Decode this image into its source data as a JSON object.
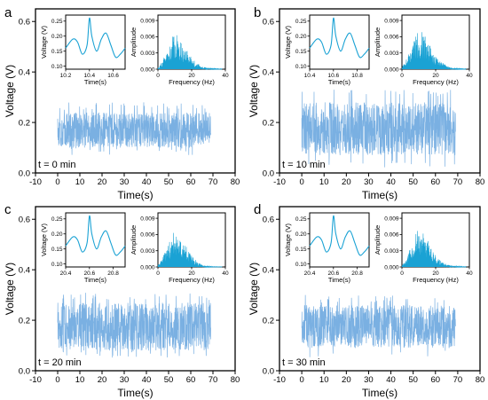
{
  "colors": {
    "signal": "#7ab0e2",
    "inset_line": "#1aa2d4",
    "axis": "#000000",
    "background": "#ffffff"
  },
  "chart_data": [
    {
      "panel": "a",
      "type": "line",
      "annotation": "t = 0 min",
      "xlabel": "Time(s)",
      "ylabel": "Voltage (V)",
      "xlim": [
        -10,
        80
      ],
      "ylim": [
        0,
        0.65
      ],
      "xticks": [
        -10,
        0,
        10,
        20,
        30,
        40,
        50,
        60,
        70,
        80
      ],
      "yticks": [
        0.0,
        0.2,
        0.4,
        0.6
      ],
      "signal": {
        "x_start": 0,
        "x_end": 69,
        "mean": 0.17,
        "band_low": 0.1,
        "band_high": 0.24,
        "max": 0.28,
        "min": 0.07
      },
      "insets": [
        {
          "type": "line",
          "xlabel": "Time(s)",
          "ylabel": "Voltage (V)",
          "xlim": [
            10.2,
            10.7
          ],
          "ylim": [
            0.09,
            0.27
          ],
          "xticks": [
            10.2,
            10.4,
            10.6
          ],
          "yticks": [
            0.1,
            0.15,
            0.2,
            0.25
          ],
          "x": [
            10.2,
            10.26,
            10.3,
            10.34,
            10.38,
            10.4,
            10.42,
            10.46,
            10.5,
            10.54,
            10.58,
            10.62,
            10.66,
            10.7
          ],
          "y": [
            0.16,
            0.19,
            0.18,
            0.14,
            0.17,
            0.26,
            0.2,
            0.15,
            0.19,
            0.21,
            0.17,
            0.13,
            0.14,
            0.16
          ]
        },
        {
          "type": "area",
          "xlabel": "Frequency (Hz)",
          "ylabel": "Amplitude",
          "xlim": [
            0,
            40
          ],
          "ylim": [
            0,
            0.01
          ],
          "xticks": [
            0,
            20,
            40
          ],
          "yticks": [
            0.0,
            0.003,
            0.006,
            0.009
          ],
          "x": [
            0,
            2,
            4,
            6,
            8,
            10,
            12,
            14,
            16,
            18,
            20,
            22,
            24,
            26,
            28,
            30,
            34,
            38
          ],
          "y": [
            0.0003,
            0.001,
            0.002,
            0.003,
            0.0045,
            0.0055,
            0.005,
            0.0042,
            0.0035,
            0.0028,
            0.0018,
            0.0012,
            0.0008,
            0.0005,
            0.0003,
            0.0002,
            0.0001,
            5e-05
          ]
        }
      ]
    },
    {
      "panel": "b",
      "type": "line",
      "annotation": "t = 10 min",
      "xlabel": "Time(s)",
      "ylabel": "Voltage (V)",
      "xlim": [
        -10,
        80
      ],
      "ylim": [
        0,
        0.65
      ],
      "xticks": [
        -10,
        0,
        10,
        20,
        30,
        40,
        50,
        60,
        70,
        80
      ],
      "yticks": [
        0.0,
        0.2,
        0.4,
        0.6
      ],
      "signal": {
        "x_start": 0,
        "x_end": 69,
        "mean": 0.17,
        "band_low": 0.07,
        "band_high": 0.28,
        "max": 0.33,
        "min": 0.02
      },
      "insets": [
        {
          "type": "line",
          "xlabel": "Time(s)",
          "ylabel": "Voltage (V)",
          "xlim": [
            10.4,
            10.9
          ],
          "ylim": [
            0.09,
            0.27
          ],
          "xticks": [
            10.4,
            10.6,
            10.8
          ],
          "yticks": [
            0.1,
            0.15,
            0.2,
            0.25
          ],
          "x": [
            10.4,
            10.46,
            10.5,
            10.54,
            10.58,
            10.6,
            10.62,
            10.66,
            10.7,
            10.74,
            10.78,
            10.82,
            10.86,
            10.9
          ],
          "y": [
            0.16,
            0.19,
            0.18,
            0.14,
            0.17,
            0.26,
            0.2,
            0.15,
            0.19,
            0.21,
            0.17,
            0.13,
            0.14,
            0.16
          ]
        },
        {
          "type": "area",
          "xlabel": "Frequency (Hz)",
          "ylabel": "Amplitude",
          "xlim": [
            0,
            40
          ],
          "ylim": [
            0,
            0.01
          ],
          "xticks": [
            0,
            20,
            40
          ],
          "yticks": [
            0.0,
            0.003,
            0.006,
            0.009
          ],
          "x": [
            0,
            2,
            4,
            6,
            8,
            10,
            12,
            14,
            16,
            18,
            20,
            22,
            24,
            26,
            28,
            30,
            34,
            38
          ],
          "y": [
            0.0003,
            0.0012,
            0.0025,
            0.0035,
            0.005,
            0.006,
            0.0055,
            0.0048,
            0.004,
            0.003,
            0.002,
            0.0014,
            0.001,
            0.0006,
            0.0004,
            0.0002,
            0.0001,
            5e-05
          ]
        }
      ]
    },
    {
      "panel": "c",
      "type": "line",
      "annotation": "t = 20 min",
      "xlabel": "Time(s)",
      "ylabel": "Voltage (V)",
      "xlim": [
        -10,
        80
      ],
      "ylim": [
        0,
        0.65
      ],
      "xticks": [
        -10,
        0,
        10,
        20,
        30,
        40,
        50,
        60,
        70,
        80
      ],
      "yticks": [
        0.0,
        0.2,
        0.4,
        0.6
      ],
      "signal": {
        "x_start": 0,
        "x_end": 69,
        "mean": 0.17,
        "band_low": 0.08,
        "band_high": 0.27,
        "max": 0.31,
        "min": 0.05
      },
      "insets": [
        {
          "type": "line",
          "xlabel": "Time(s)",
          "ylabel": "Voltage (V)",
          "xlim": [
            20.4,
            20.9
          ],
          "ylim": [
            0.09,
            0.27
          ],
          "xticks": [
            20.4,
            20.6,
            20.8
          ],
          "yticks": [
            0.1,
            0.15,
            0.2,
            0.25
          ],
          "x": [
            20.4,
            20.46,
            20.5,
            20.54,
            20.58,
            20.6,
            20.62,
            20.66,
            20.7,
            20.74,
            20.78,
            20.82,
            20.86,
            20.9
          ],
          "y": [
            0.16,
            0.19,
            0.18,
            0.14,
            0.17,
            0.26,
            0.2,
            0.15,
            0.19,
            0.21,
            0.17,
            0.13,
            0.14,
            0.16
          ]
        },
        {
          "type": "area",
          "xlabel": "Frequency (Hz)",
          "ylabel": "Amplitude",
          "xlim": [
            0,
            40
          ],
          "ylim": [
            0,
            0.01
          ],
          "xticks": [
            0,
            20,
            40
          ],
          "yticks": [
            0.0,
            0.003,
            0.006,
            0.009
          ],
          "x": [
            0,
            2,
            4,
            6,
            8,
            10,
            12,
            14,
            16,
            18,
            20,
            22,
            24,
            26,
            28,
            30,
            34,
            38
          ],
          "y": [
            0.0003,
            0.001,
            0.0022,
            0.0032,
            0.0046,
            0.0056,
            0.005,
            0.0042,
            0.0034,
            0.0026,
            0.0017,
            0.0011,
            0.0007,
            0.0004,
            0.0002,
            0.0001,
            5e-05,
            3e-05
          ]
        }
      ]
    },
    {
      "panel": "d",
      "type": "line",
      "annotation": "t = 30 min",
      "xlabel": "Time(s)",
      "ylabel": "Voltage (V)",
      "xlim": [
        -10,
        80
      ],
      "ylim": [
        0,
        0.65
      ],
      "xticks": [
        -10,
        0,
        10,
        20,
        30,
        40,
        50,
        60,
        70,
        80
      ],
      "yticks": [
        0.0,
        0.2,
        0.4,
        0.6
      ],
      "signal": {
        "x_start": 0,
        "x_end": 69,
        "mean": 0.17,
        "band_low": 0.09,
        "band_high": 0.26,
        "max": 0.3,
        "min": 0.05
      },
      "insets": [
        {
          "type": "line",
          "xlabel": "Time(s)",
          "ylabel": "Voltage (V)",
          "xlim": [
            20.4,
            20.9
          ],
          "ylim": [
            0.09,
            0.27
          ],
          "xticks": [
            20.4,
            20.6,
            20.8
          ],
          "yticks": [
            0.1,
            0.15,
            0.2,
            0.25
          ],
          "x": [
            20.4,
            20.46,
            20.5,
            20.54,
            20.58,
            20.6,
            20.62,
            20.66,
            20.7,
            20.74,
            20.78,
            20.82,
            20.86,
            20.9
          ],
          "y": [
            0.16,
            0.19,
            0.18,
            0.14,
            0.17,
            0.26,
            0.2,
            0.15,
            0.19,
            0.21,
            0.17,
            0.13,
            0.14,
            0.16
          ]
        },
        {
          "type": "area",
          "xlabel": "Frequency (Hz)",
          "ylabel": "Amplitude",
          "xlim": [
            0,
            40
          ],
          "ylim": [
            0,
            0.01
          ],
          "xticks": [
            0,
            20,
            40
          ],
          "yticks": [
            0.0,
            0.003,
            0.006,
            0.009
          ],
          "x": [
            0,
            2,
            4,
            6,
            8,
            10,
            12,
            14,
            16,
            18,
            20,
            22,
            24,
            26,
            28,
            30,
            34,
            38
          ],
          "y": [
            0.0003,
            0.001,
            0.0022,
            0.0034,
            0.0048,
            0.0058,
            0.0052,
            0.0044,
            0.0036,
            0.0028,
            0.0018,
            0.0012,
            0.0008,
            0.0005,
            0.0003,
            0.0002,
            0.0001,
            5e-05
          ]
        }
      ]
    }
  ]
}
